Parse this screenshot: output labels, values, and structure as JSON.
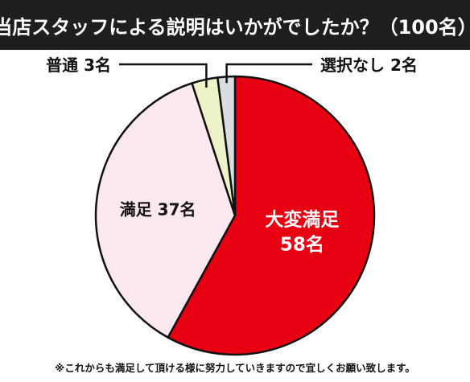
{
  "title": "当店スタッフによる説明はいかがでしたか？（100名）",
  "footnote": "※これからも満足して頂ける様に努力していきますので宜しくお願い致します。",
  "colors": {
    "title_bg": "#1e1e1e",
    "title_text": "#ffffff",
    "outline": "#111111"
  },
  "chart_data": {
    "type": "pie",
    "title": "当店スタッフによる説明はいかがでしたか？（100名）",
    "total": 100,
    "unit": "名",
    "slices": [
      {
        "label": "大変満足",
        "value": 58,
        "value_text": "58名",
        "color": "#e60012",
        "text_color": "#ffffff"
      },
      {
        "label": "満足",
        "value": 37,
        "value_text": "37名",
        "color": "#fce8ef",
        "text_color": "#111111"
      },
      {
        "label": "普通",
        "value": 3,
        "value_text": "3名",
        "color": "#eef2c8",
        "text_color": "#111111"
      },
      {
        "label": "選択なし",
        "value": 2,
        "value_text": "2名",
        "color": "#d9dde2",
        "text_color": "#111111"
      }
    ],
    "legend": "none"
  }
}
